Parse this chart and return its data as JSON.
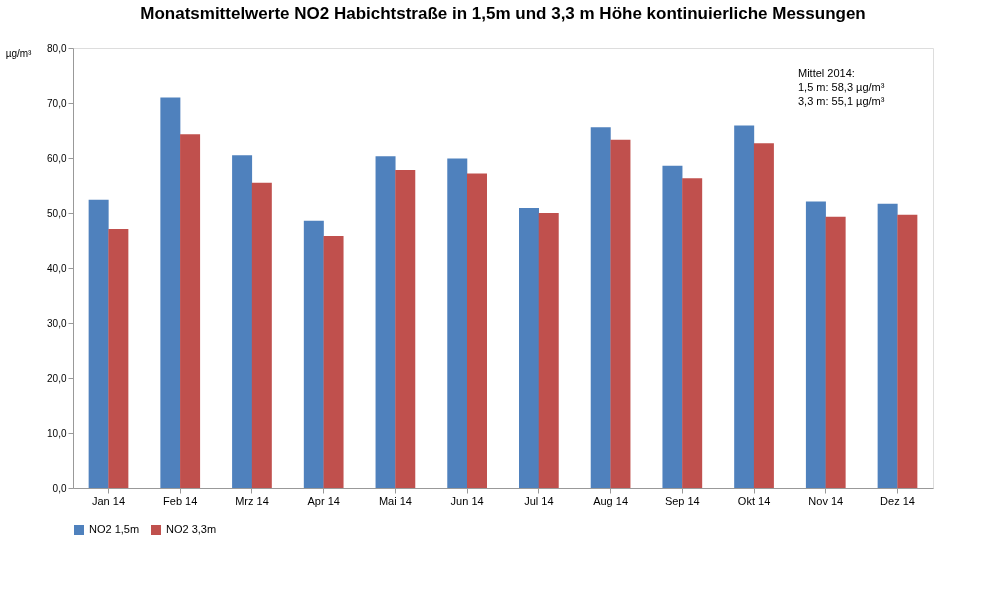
{
  "chart_data": {
    "type": "bar",
    "title": "Monatsmittelwerte NO2 Habichtstraße in 1,5m und 3,3 m Höhe kontinuierliche Messungen",
    "ylabel": "µg/m³",
    "categories": [
      "Jan 14",
      "Feb 14",
      "Mrz 14",
      "Apr 14",
      "Mai 14",
      "Jun 14",
      "Jul 14",
      "Aug 14",
      "Sep 14",
      "Okt 14",
      "Nov 14",
      "Dez 14"
    ],
    "series": [
      {
        "name": "NO2 1,5m",
        "color": "#4f81bd",
        "values": [
          52.4,
          71.0,
          60.5,
          48.6,
          60.3,
          59.9,
          50.9,
          65.6,
          58.6,
          65.9,
          52.1,
          51.7
        ]
      },
      {
        "name": "NO2 3,3m",
        "color": "#c0504d",
        "values": [
          47.1,
          64.3,
          55.5,
          45.8,
          57.8,
          57.2,
          50.0,
          63.3,
          56.3,
          62.7,
          49.3,
          49.7
        ]
      }
    ],
    "ylim": [
      0,
      80
    ],
    "yticks": [
      {
        "value": 0,
        "label": "0,0"
      },
      {
        "value": 10,
        "label": "10,0"
      },
      {
        "value": 20,
        "label": "20,0"
      },
      {
        "value": 30,
        "label": "30,0"
      },
      {
        "value": 40,
        "label": "40,0"
      },
      {
        "value": 50,
        "label": "50,0"
      },
      {
        "value": 60,
        "label": "60,0"
      },
      {
        "value": 70,
        "label": "70,0"
      },
      {
        "value": 80,
        "label": "80,0"
      }
    ],
    "annotations": [
      "Mittel 2014:",
      "1,5 m: 58,3 µg/m³",
      "3,3 m: 55,1 µg/m³"
    ],
    "legend": "bottom",
    "grid": false
  }
}
